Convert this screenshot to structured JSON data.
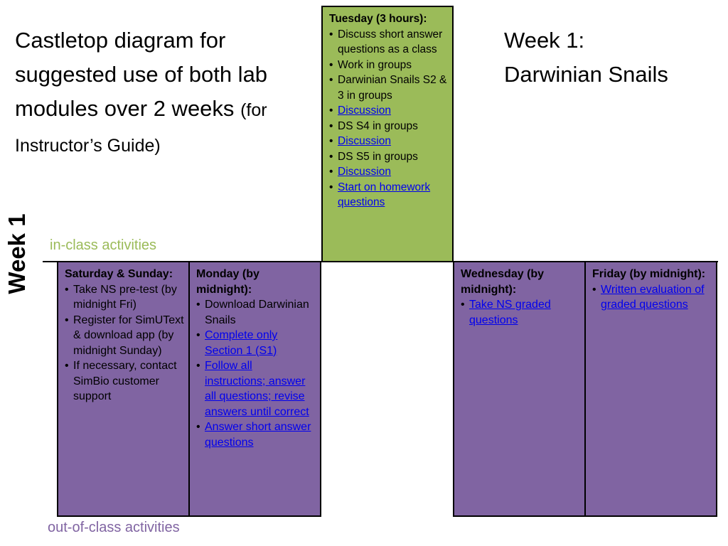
{
  "title": {
    "main": "Castletop diagram for suggested use of both lab modules over 2 weeks",
    "sub": "(for Instructor’s Guide)"
  },
  "week_heading": {
    "line1": "Week 1:",
    "line2": "Darwinian Snails"
  },
  "side_label": "Week 1",
  "legend": {
    "in_class": "in-class activities",
    "out_class": "out-of-class activities"
  },
  "colors": {
    "in_class": "#9bbb59",
    "out_class": "#8064a2",
    "link": "#0000ee"
  },
  "bullet_char": "•",
  "boxes": {
    "tuesday": {
      "title": "Tuesday (3 hours):",
      "items": [
        {
          "text": "Discuss short answer questions as a class",
          "link": false
        },
        {
          "text": "Work in groups",
          "link": false
        },
        {
          "text": "Darwinian Snails S2 & 3 in groups",
          "link": false
        },
        {
          "text": "Discussion",
          "link": true
        },
        {
          "text": "DS S4 in groups",
          "link": false
        },
        {
          "text": "Discussion",
          "link": true
        },
        {
          "text": "DS S5 in groups",
          "link": false
        },
        {
          "text": "Discussion",
          "link": true
        },
        {
          "text": "Start on homework questions",
          "link": true
        }
      ]
    },
    "saturday": {
      "title": "Saturday & Sunday:",
      "items": [
        {
          "text": "Take NS pre-test (by midnight Fri)",
          "link": false
        },
        {
          "text": "Register for SimUText & download app (by midnight Sunday)",
          "link": false
        },
        {
          "text": "If  necessary, contact SimBio customer support",
          "link": false
        }
      ]
    },
    "monday": {
      "title": "Monday (by midnight):",
      "items": [
        {
          "text": "Download Darwinian Snails",
          "link": false
        },
        {
          "text": "Complete only Section 1 (S1)",
          "link": true
        },
        {
          "text": "Follow all instructions; answer all questions; revise answers until correct",
          "link": true
        },
        {
          "text": "Answer short answer questions",
          "link": true
        }
      ]
    },
    "wednesday": {
      "title": "Wednesday (by midnight):",
      "items": [
        {
          "text": "Take NS graded questions",
          "link": true
        }
      ]
    },
    "friday": {
      "title": "Friday (by midnight):",
      "items": [
        {
          "text": "Written evaluation of graded questions",
          "link": true
        }
      ]
    }
  }
}
